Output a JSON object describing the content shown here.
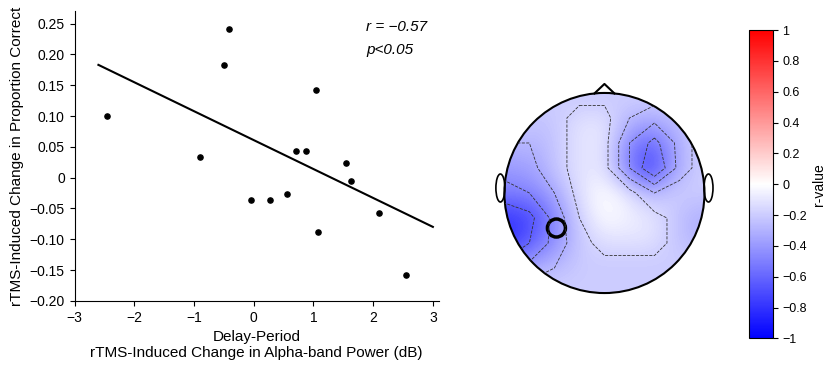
{
  "chart_data": [
    {
      "type": "scatter",
      "x_label": "Delay-Period\nrTMS-Induced Change in Alpha-band Power (dB)",
      "y_label": "rTMS-Induced Change in Proportion Correct",
      "x": [
        -2.45,
        -0.9,
        -0.5,
        -0.42,
        -0.05,
        0.28,
        0.55,
        0.7,
        0.88,
        1.05,
        1.07,
        1.55,
        1.63,
        2.1,
        2.55
      ],
      "values": [
        0.1,
        0.033,
        0.183,
        0.242,
        -0.037,
        -0.037,
        -0.027,
        0.043,
        0.043,
        0.142,
        -0.088,
        0.023,
        -0.005,
        -0.057,
        -0.158
      ],
      "color": "#000000",
      "marker": "o",
      "fit_line": {
        "x": [
          -2.6,
          3.0
        ],
        "y": [
          0.183,
          -0.08
        ]
      },
      "annotations": [
        "r = −0.57",
        "p<0.05"
      ],
      "xlim": [
        -3,
        3.1
      ],
      "xticks": [
        -3,
        -2,
        -1,
        0,
        1,
        2,
        3
      ],
      "ylim": [
        -0.2,
        0.27
      ],
      "yticks": [
        {
          "value": -0.2,
          "label": "−0.20"
        },
        {
          "value": -0.15,
          "label": "−0.15"
        },
        {
          "value": -0.1,
          "label": "−0.10"
        },
        {
          "value": -0.05,
          "label": "−0.05"
        },
        {
          "value": 0,
          "label": "0"
        },
        {
          "value": 0.05,
          "label": "0.05"
        },
        {
          "value": 0.1,
          "label": "0.10"
        },
        {
          "value": 0.15,
          "label": "0.15"
        },
        {
          "value": 0.2,
          "label": "0.20"
        },
        {
          "value": 0.25,
          "label": "0.25"
        }
      ]
    },
    {
      "type": "heatmap",
      "values": [
        [
          -0.2,
          -0.2,
          -0.2,
          -0.2,
          -0.2,
          -0.2,
          -0.2,
          -0.2,
          -0.2
        ],
        [
          -0.2,
          -0.25,
          -0.2,
          -0.1,
          -0.1,
          -0.3,
          -0.4,
          -0.3,
          -0.2
        ],
        [
          -0.3,
          -0.3,
          -0.2,
          -0.1,
          -0.1,
          -0.45,
          -0.65,
          -0.4,
          -0.2
        ],
        [
          -0.4,
          -0.35,
          -0.2,
          -0.1,
          -0.1,
          -0.45,
          -0.75,
          -0.4,
          -0.2
        ],
        [
          -0.5,
          -0.45,
          -0.3,
          -0.1,
          0.0,
          -0.1,
          -0.3,
          -0.2,
          -0.2
        ],
        [
          -0.75,
          -0.65,
          -0.4,
          -0.15,
          0.0,
          -0.05,
          -0.1,
          -0.2,
          -0.3
        ],
        [
          -0.8,
          -0.6,
          -0.4,
          -0.2,
          -0.1,
          -0.1,
          -0.1,
          -0.2,
          -0.3
        ],
        [
          -0.5,
          -0.4,
          -0.3,
          -0.2,
          -0.2,
          -0.2,
          -0.2,
          -0.2,
          -0.2
        ],
        [
          -0.2,
          -0.2,
          -0.2,
          -0.2,
          -0.2,
          -0.2,
          -0.2,
          -0.2,
          -0.2
        ]
      ],
      "colorbar": {
        "range": [
          -1,
          1
        ],
        "ticks": [
          -1,
          -0.8,
          -0.6,
          -0.4,
          -0.2,
          0,
          0.2,
          0.4,
          0.6,
          0.8,
          1
        ],
        "label": "r-value"
      }
    }
  ]
}
